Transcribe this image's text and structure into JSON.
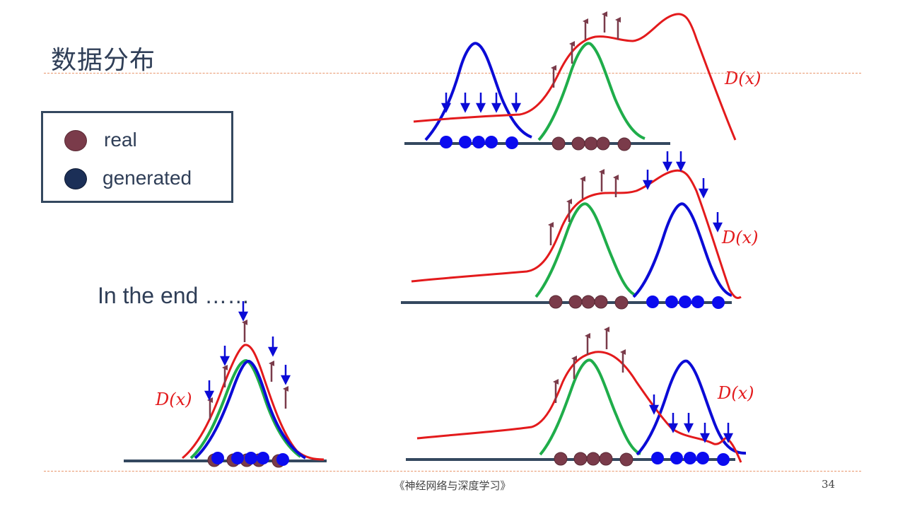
{
  "slide": {
    "title": "数据分布",
    "end_text": "In the end ……",
    "footer": "《神经网络与深度学习》",
    "page_number": "34"
  },
  "legend": {
    "items": [
      {
        "label": "real",
        "color": "#7a3b4a"
      },
      {
        "label": "generated",
        "color": "#1b2f57"
      }
    ]
  },
  "curve_label": "D(x)",
  "colors": {
    "discriminator": "#e31a1c",
    "real_dist": "#1fad4a",
    "generated_dist": "#0b0bd6",
    "real_point": "#7a3b4a",
    "generated_point": "#0b0bef",
    "axis": "#34485f",
    "up_arrow": "#7a3b4a",
    "down_arrow": "#0b0bd6",
    "text": "#2f3e57",
    "rule": "#e8956a"
  }
}
